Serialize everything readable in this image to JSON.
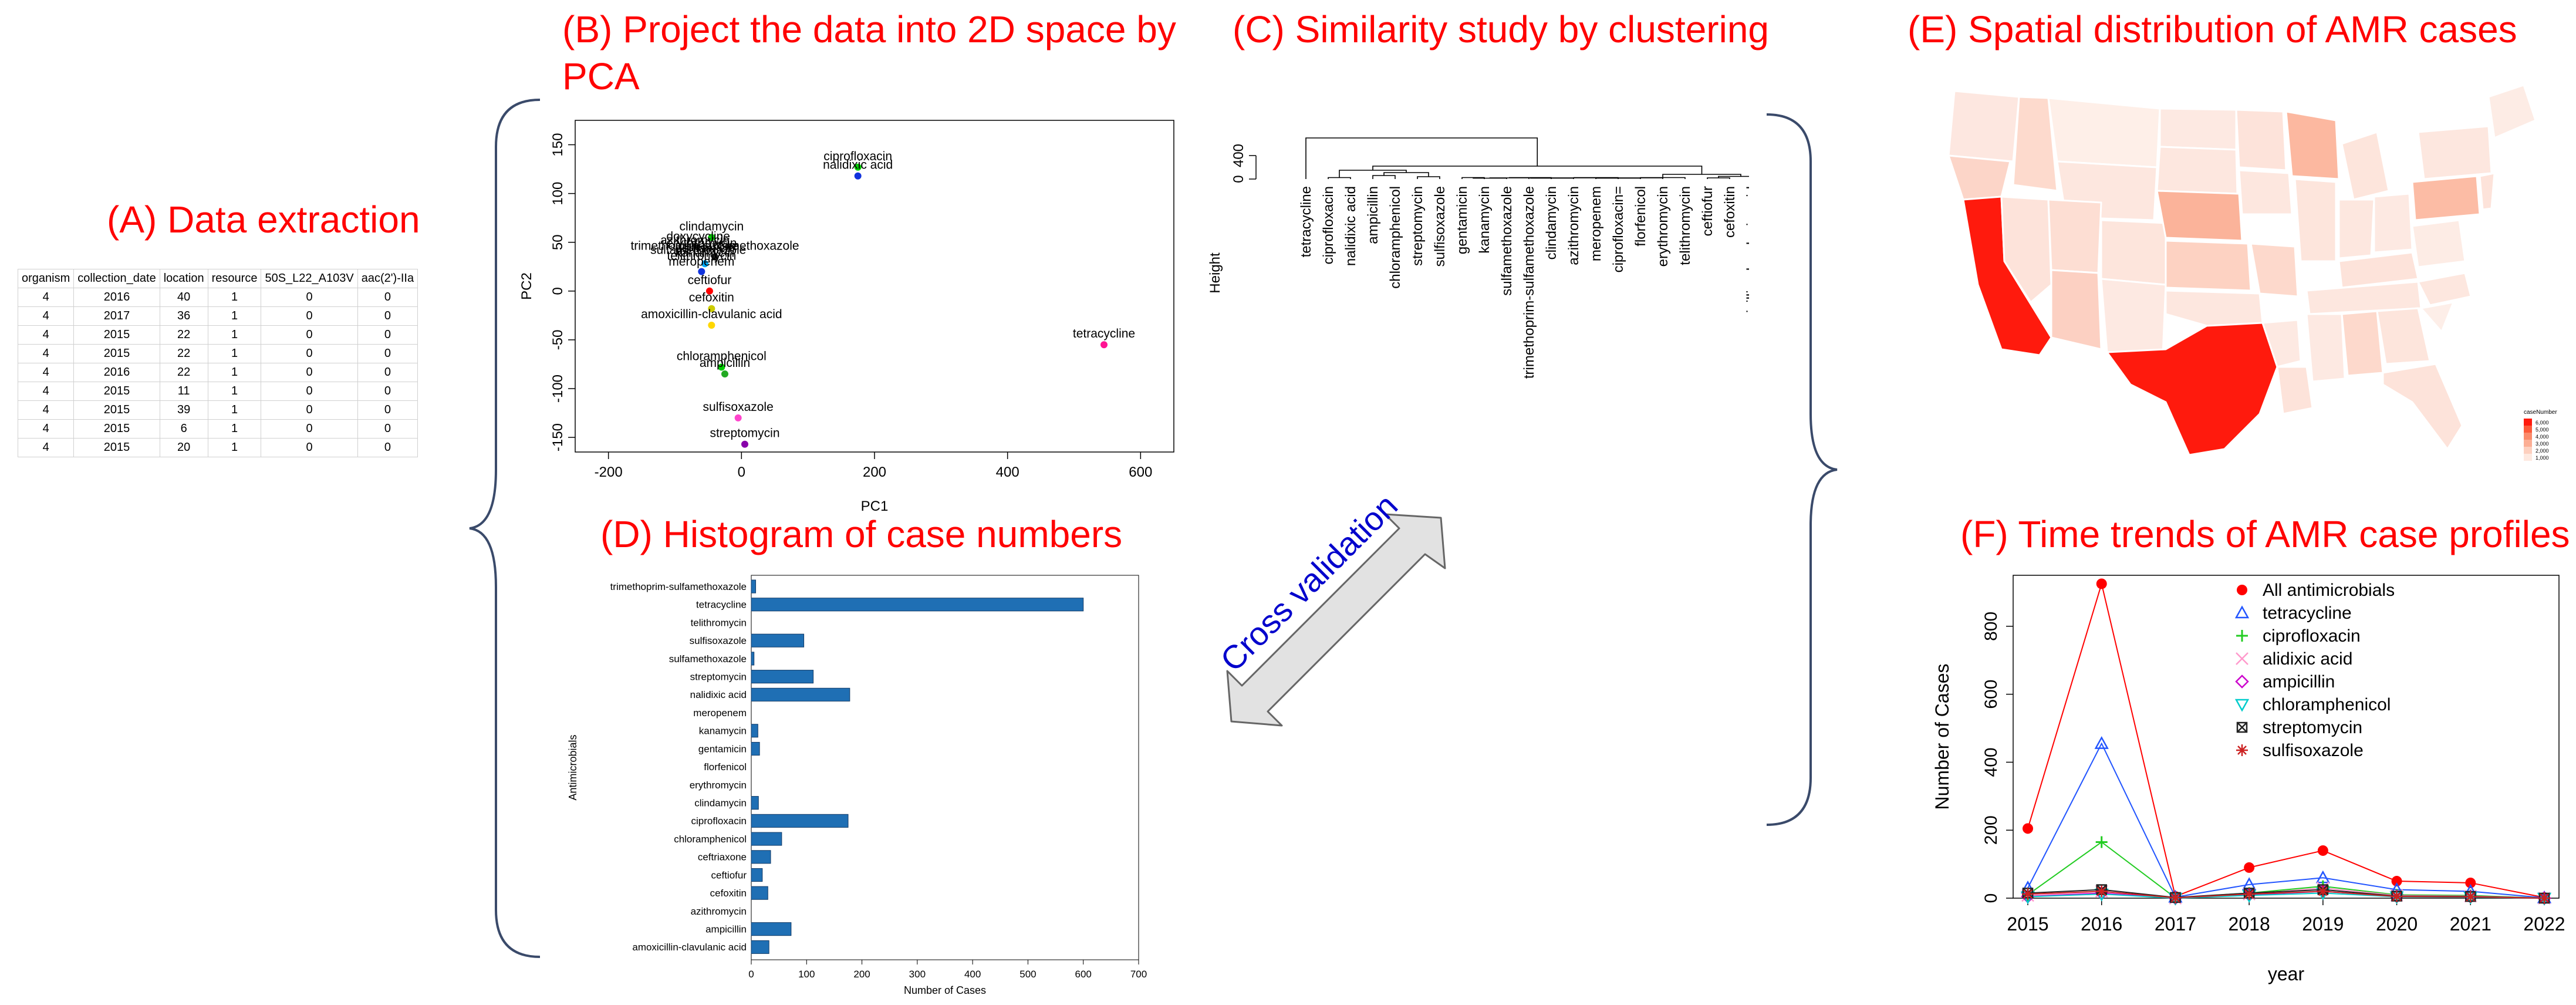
{
  "titles": {
    "a": "(A) Data extraction",
    "b_line1": "(B) Project the data into 2D space by",
    "b_line2": "PCA",
    "c": "(C) Similarity study by clustering",
    "d": "(D) Histogram of case numbers",
    "e": "(E) Spatial distribution of AMR cases",
    "f": "(F) Time trends of AMR case profiles"
  },
  "cross_validation_label": "Cross validation",
  "colors": {
    "title": "#ff0000",
    "bar": "#1f6fb4",
    "cross_validation": "#0000cc"
  },
  "table": {
    "headers": [
      "organism",
      "collection_date",
      "location",
      "resource",
      "50S_L22_A103V",
      "aac(2')-IIa"
    ],
    "rows": [
      [
        "4",
        "2016",
        "40",
        "1",
        "0",
        "0"
      ],
      [
        "4",
        "2017",
        "36",
        "1",
        "0",
        "0"
      ],
      [
        "4",
        "2015",
        "22",
        "1",
        "0",
        "0"
      ],
      [
        "4",
        "2015",
        "22",
        "1",
        "0",
        "0"
      ],
      [
        "4",
        "2016",
        "22",
        "1",
        "0",
        "0"
      ],
      [
        "4",
        "2015",
        "11",
        "1",
        "0",
        "0"
      ],
      [
        "4",
        "2015",
        "39",
        "1",
        "0",
        "0"
      ],
      [
        "4",
        "2015",
        "6",
        "1",
        "0",
        "0"
      ],
      [
        "4",
        "2015",
        "20",
        "1",
        "0",
        "0"
      ]
    ]
  },
  "chart_data": [
    {
      "id": "pca",
      "type": "scatter",
      "xlabel": "PC1",
      "ylabel": "PC2",
      "xlim": [
        -250,
        650
      ],
      "ylim": [
        -165,
        175
      ],
      "xticks": [
        -200,
        0,
        200,
        400,
        600
      ],
      "yticks": [
        -150,
        -100,
        -50,
        0,
        50,
        100,
        150
      ],
      "points": [
        {
          "label": "ciprofloxacin",
          "x": 175,
          "y": 127,
          "color": "#00cc00"
        },
        {
          "label": "nalidixic acid",
          "x": 175,
          "y": 118,
          "color": "#1133dd"
        },
        {
          "label": "clindamycin",
          "x": -45,
          "y": 55,
          "color": "#00cc00"
        },
        {
          "label": "trimethoprim-sulfamethoxazole",
          "x": -40,
          "y": 35,
          "color": "#222222"
        },
        {
          "label": "kanamycin",
          "x": -55,
          "y": 28,
          "color": "#00aaff"
        },
        {
          "label": "",
          "x": -60,
          "y": 20,
          "color": "#1133dd"
        },
        {
          "label": "ceftiofur",
          "x": -48,
          "y": 0,
          "color": "#ff0000"
        },
        {
          "label": "cefoxitin",
          "x": -45,
          "y": -18,
          "color": "#cccc00"
        },
        {
          "label": "amoxicillin-clavulanic acid",
          "x": -45,
          "y": -35,
          "color": "#ffd700"
        },
        {
          "label": "tetracycline",
          "x": 545,
          "y": -55,
          "color": "#ff1493"
        },
        {
          "label": "chloramphenicol",
          "x": -30,
          "y": -78,
          "color": "#00cc00"
        },
        {
          "label": "ampicillin",
          "x": -25,
          "y": -85,
          "color": "#22aa22"
        },
        {
          "label": "sulfisoxazole",
          "x": -5,
          "y": -130,
          "color": "#ff44cc"
        },
        {
          "label": "streptomycin",
          "x": 5,
          "y": -157,
          "color": "#8800aa"
        }
      ],
      "extra_labels": [
        "doxycycline",
        "erythromycin",
        "gentamicin",
        "azithromycin",
        "ceftriaxone",
        "telithromycin",
        "sulfamethoxazole",
        "meropenem"
      ]
    },
    {
      "id": "dendrogram",
      "type": "dendrogram",
      "ylabel": "Height",
      "yticks": [
        0,
        400
      ],
      "leaves": [
        "tetracycline",
        "ciprofloxacin",
        "nalidixic acid",
        "ampicillin",
        "chloramphenicol",
        "streptomycin",
        "sulfisoxazole",
        "gentamicin",
        "kanamycin",
        "sulfamethoxazole",
        "trimethoprim-sulfamethoxazole",
        "clindamycin",
        "azithromycin",
        "meropenem",
        "ciprofloxacin=",
        "florfenicol",
        "erythromycin",
        "telithromycin",
        "ceftiofur",
        "cefoxitin",
        "amoxicillin-clavulanic acid",
        "ceftriaxone"
      ]
    },
    {
      "id": "histogram",
      "type": "bar",
      "orientation": "horizontal",
      "xlabel": "Number of Cases",
      "ylabel": "Antimicrobials",
      "xlim": [
        0,
        700
      ],
      "xticks": [
        0,
        100,
        200,
        300,
        400,
        500,
        600,
        700
      ],
      "categories": [
        "trimethoprim-sulfamethoxazole",
        "tetracycline",
        "telithromycin",
        "sulfisoxazole",
        "sulfamethoxazole",
        "streptomycin",
        "nalidixic acid",
        "meropenem",
        "kanamycin",
        "gentamicin",
        "florfenicol",
        "erythromycin",
        "clindamycin",
        "ciprofloxacin",
        "chloramphenicol",
        "ceftriaxone",
        "ceftiofur",
        "cefoxitin",
        "azithromycin",
        "ampicillin",
        "amoxicillin-clavulanic acid"
      ],
      "values": [
        8,
        600,
        0,
        95,
        5,
        112,
        178,
        0,
        12,
        15,
        0,
        0,
        13,
        175,
        55,
        35,
        20,
        30,
        0,
        72,
        32
      ]
    },
    {
      "id": "time_trends",
      "type": "line",
      "xlabel": "year",
      "ylabel": "Number of Cases",
      "x": [
        2015,
        2016,
        2017,
        2018,
        2019,
        2020,
        2021,
        2022
      ],
      "ylim": [
        0,
        950
      ],
      "yticks": [
        0,
        200,
        400,
        600,
        800
      ],
      "legend_position": "top-right",
      "series": [
        {
          "name": "All antimicrobials",
          "marker": "filled-circle",
          "color": "#ff0000",
          "values": [
            205,
            925,
            5,
            90,
            140,
            50,
            45,
            2
          ]
        },
        {
          "name": "tetracycline",
          "marker": "triangle-up",
          "color": "#2255ff",
          "values": [
            30,
            455,
            3,
            40,
            60,
            25,
            20,
            1
          ]
        },
        {
          "name": "ciprofloxacin",
          "marker": "plus",
          "color": "#22cc22",
          "values": [
            10,
            165,
            1,
            15,
            35,
            10,
            8,
            0
          ]
        },
        {
          "name": "alidixic acid",
          "marker": "cross",
          "color": "#ff99cc",
          "values": [
            8,
            20,
            0,
            12,
            30,
            8,
            6,
            0
          ]
        },
        {
          "name": "ampicillin",
          "marker": "diamond",
          "color": "#cc00cc",
          "values": [
            5,
            15,
            0,
            10,
            20,
            5,
            4,
            0
          ]
        },
        {
          "name": "chloramphenicol",
          "marker": "triangle-down",
          "color": "#00cccc",
          "values": [
            4,
            12,
            0,
            8,
            15,
            4,
            3,
            0
          ]
        },
        {
          "name": "streptomycin",
          "marker": "box-x",
          "color": "#222222",
          "values": [
            15,
            25,
            2,
            15,
            25,
            6,
            5,
            0
          ]
        },
        {
          "name": "sulfisoxazole",
          "marker": "asterisk",
          "color": "#cc2222",
          "values": [
            12,
            20,
            1,
            12,
            20,
            5,
            4,
            0
          ]
        }
      ]
    }
  ],
  "map": {
    "legend_title": "caseNumber",
    "legend_labels": [
      "6,000",
      "5,000",
      "4,000",
      "3,000",
      "2,000",
      "1,000"
    ]
  }
}
